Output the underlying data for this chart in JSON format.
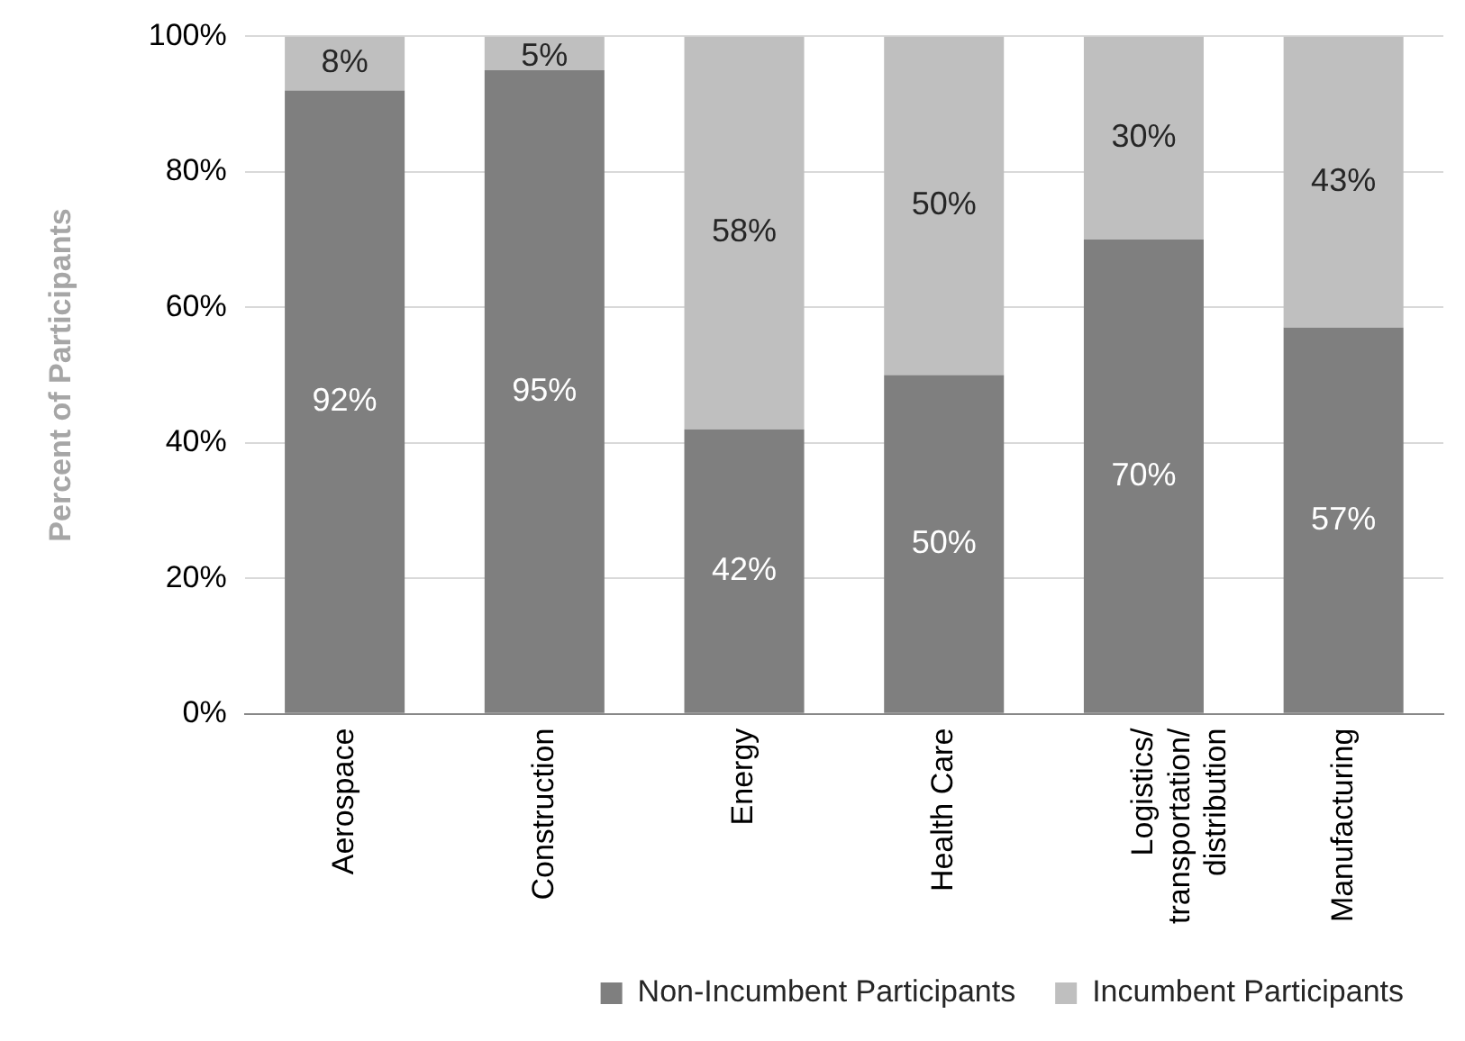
{
  "chart_data": {
    "type": "bar",
    "stacked": true,
    "ylabel": "Percent of Participants",
    "categories": [
      "Aerospace",
      "Construction",
      "Energy",
      "Health Care",
      "Logistics/ transportation/ distribution",
      "Manufacturing"
    ],
    "series": [
      {
        "name": "Non-Incumbent Participants",
        "color": "#7f7f7f",
        "values": [
          92,
          95,
          42,
          50,
          70,
          57
        ],
        "value_labels": [
          "92%",
          "95%",
          "42%",
          "50%",
          "70%",
          "57%"
        ]
      },
      {
        "name": "Incumbent Participants",
        "color": "#bfbfbf",
        "values": [
          8,
          5,
          58,
          50,
          30,
          43
        ],
        "value_labels": [
          "8%",
          "5%",
          "58%",
          "50%",
          "30%",
          "43%"
        ]
      }
    ],
    "ylim": [
      0,
      100
    ],
    "yticks": [
      {
        "value": 0,
        "label": "0%"
      },
      {
        "value": 20,
        "label": "20%"
      },
      {
        "value": 40,
        "label": "40%"
      },
      {
        "value": 60,
        "label": "60%"
      },
      {
        "value": 80,
        "label": "80%"
      },
      {
        "value": 100,
        "label": "100%"
      }
    ],
    "grid": "y",
    "legend": "bottom"
  }
}
